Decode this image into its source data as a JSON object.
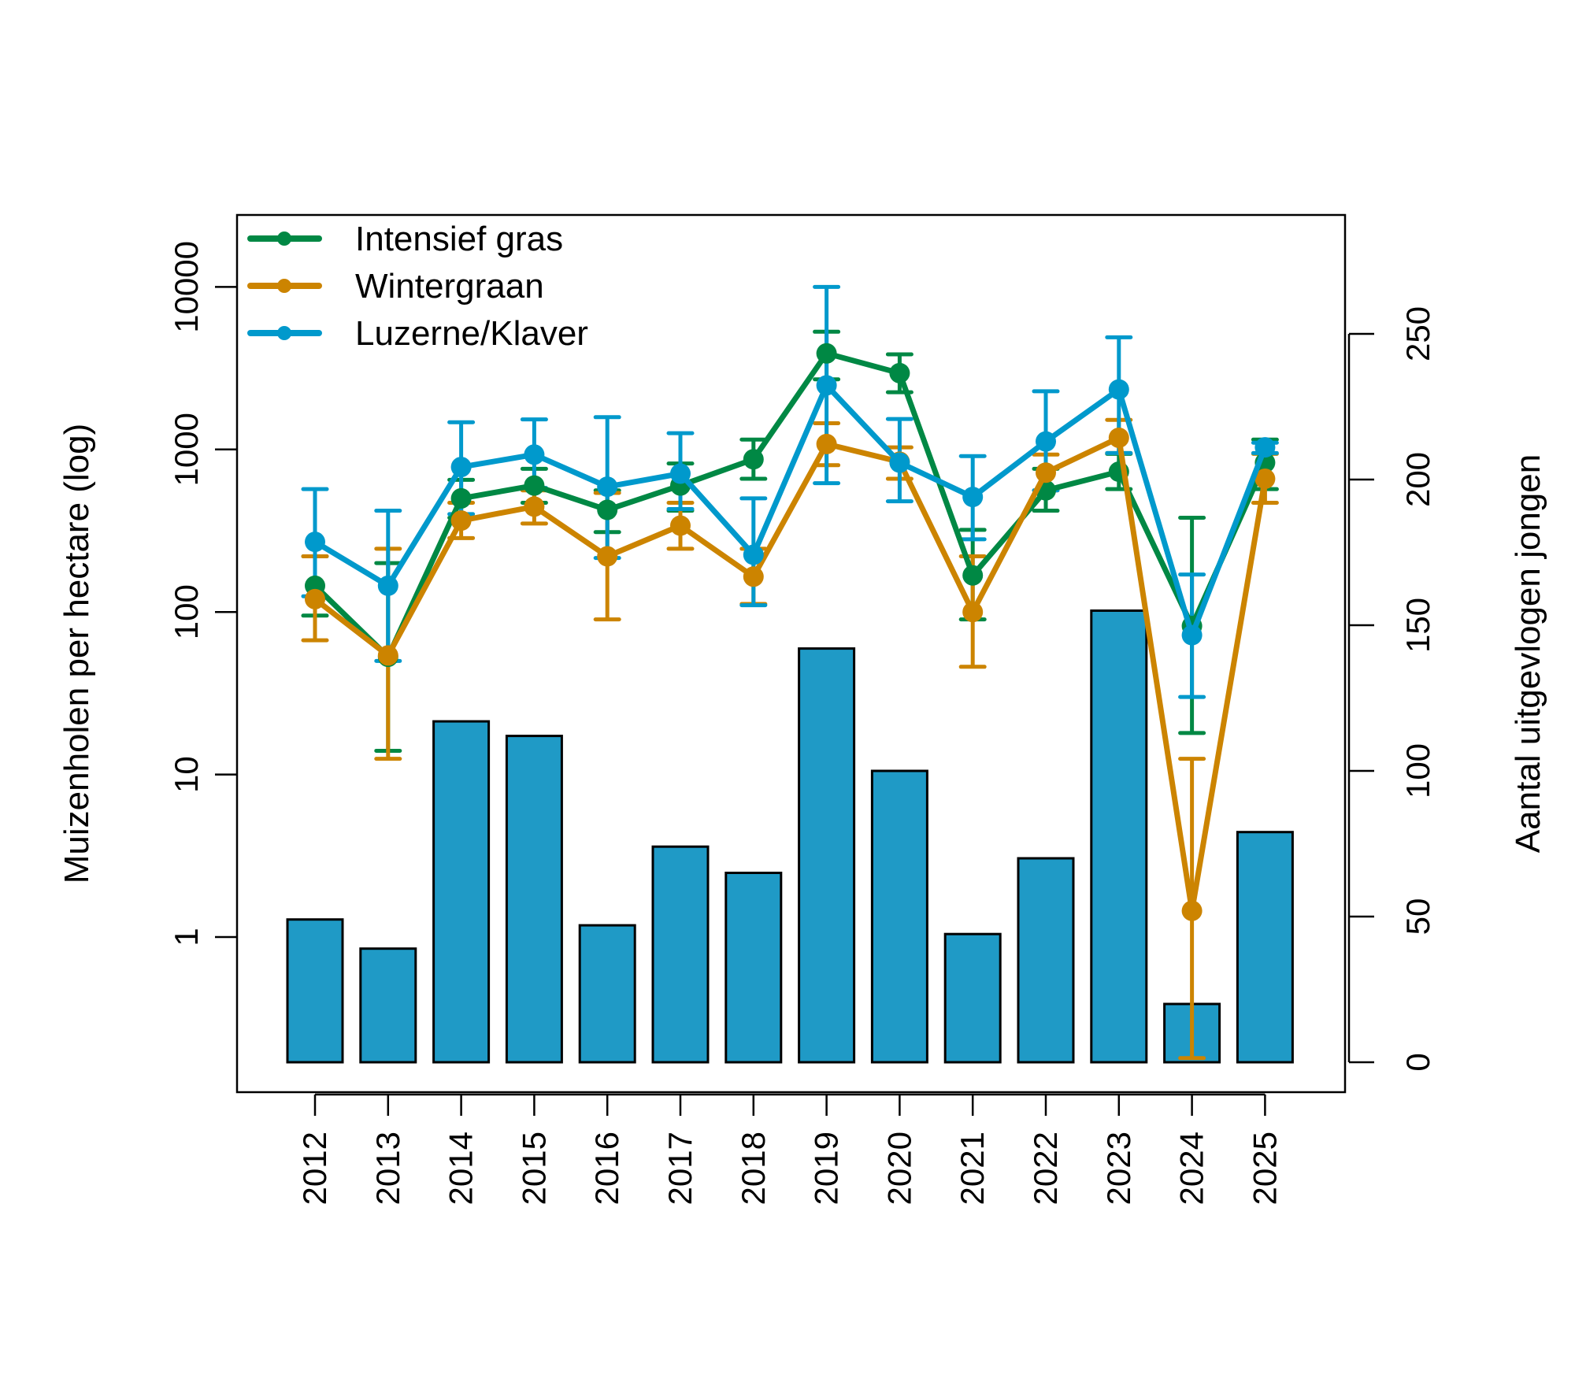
{
  "chart_data": {
    "type": "bar+line",
    "title": "",
    "xlabel": "",
    "ylabel_left": "Muizenholen per hectare (log)",
    "ylabel_right": "Aantal uitgevlogen jongen",
    "left_axis": {
      "scale": "log",
      "ticks": [
        1,
        10,
        100,
        1000,
        10000
      ],
      "tick_labels": [
        "1",
        "10",
        "100",
        "1000",
        "10000"
      ],
      "ylim": [
        0.18,
        28000
      ]
    },
    "right_axis": {
      "scale": "linear",
      "ticks": [
        0,
        50,
        100,
        150,
        200,
        250
      ],
      "tick_labels": [
        "0",
        "50",
        "100",
        "150",
        "200",
        "250"
      ],
      "ylim": [
        -12,
        290
      ]
    },
    "categories": [
      "2012",
      "2013",
      "2014",
      "2015",
      "2016",
      "2017",
      "2018",
      "2019",
      "2020",
      "2021",
      "2022",
      "2023",
      "2024",
      "2025"
    ],
    "bars": {
      "name": "Aantal uitgevlogen jongen",
      "axis": "right",
      "color": "#1f9ac6",
      "values": [
        49,
        39,
        117,
        112,
        47,
        74,
        65,
        142,
        100,
        44,
        70,
        155,
        20,
        79
      ]
    },
    "series": [
      {
        "name": "Intensief gras",
        "axis": "left",
        "color": "#008844",
        "values": [
          145,
          53,
          500,
          600,
          425,
          600,
          870,
          3900,
          2950,
          168,
          560,
          730,
          82,
          830
        ],
        "lower": [
          95,
          14,
          380,
          470,
          310,
          420,
          660,
          2700,
          2250,
          90,
          420,
          570,
          18,
          570
        ],
        "upper": [
          220,
          200,
          650,
          760,
          560,
          820,
          1150,
          5300,
          3850,
          320,
          760,
          940,
          380,
          1150
        ]
      },
      {
        "name": "Wintergraan",
        "axis": "left",
        "color": "#cc8400",
        "values": [
          120,
          54,
          365,
          445,
          220,
          340,
          165,
          1080,
          840,
          100,
          720,
          1180,
          1.45,
          660
        ],
        "lower": [
          67,
          12.5,
          285,
          350,
          90,
          245,
          112,
          800,
          660,
          46,
          560,
          950,
          0.18,
          470
        ],
        "upper": [
          220,
          245,
          470,
          560,
          540,
          470,
          245,
          1450,
          1030,
          220,
          930,
          1520,
          12.5,
          940
        ]
      },
      {
        "name": "Luzerne/Klaver",
        "axis": "left",
        "color": "#0099cc",
        "values": [
          270,
          145,
          780,
          930,
          590,
          710,
          225,
          2480,
          830,
          510,
          1120,
          2340,
          72,
          1030
        ],
        "lower": [
          125,
          50,
          400,
          580,
          215,
          430,
          110,
          620,
          480,
          280,
          560,
          950,
          30,
          950
        ],
        "upper": [
          570,
          420,
          1470,
          1530,
          1580,
          1260,
          500,
          10000,
          1540,
          910,
          2280,
          4900,
          170,
          1100
        ]
      }
    ],
    "legend": {
      "position": "top-left",
      "entries": [
        "Intensief gras",
        "Wintergraan",
        "Luzerne/Klaver"
      ]
    },
    "grid": false
  }
}
